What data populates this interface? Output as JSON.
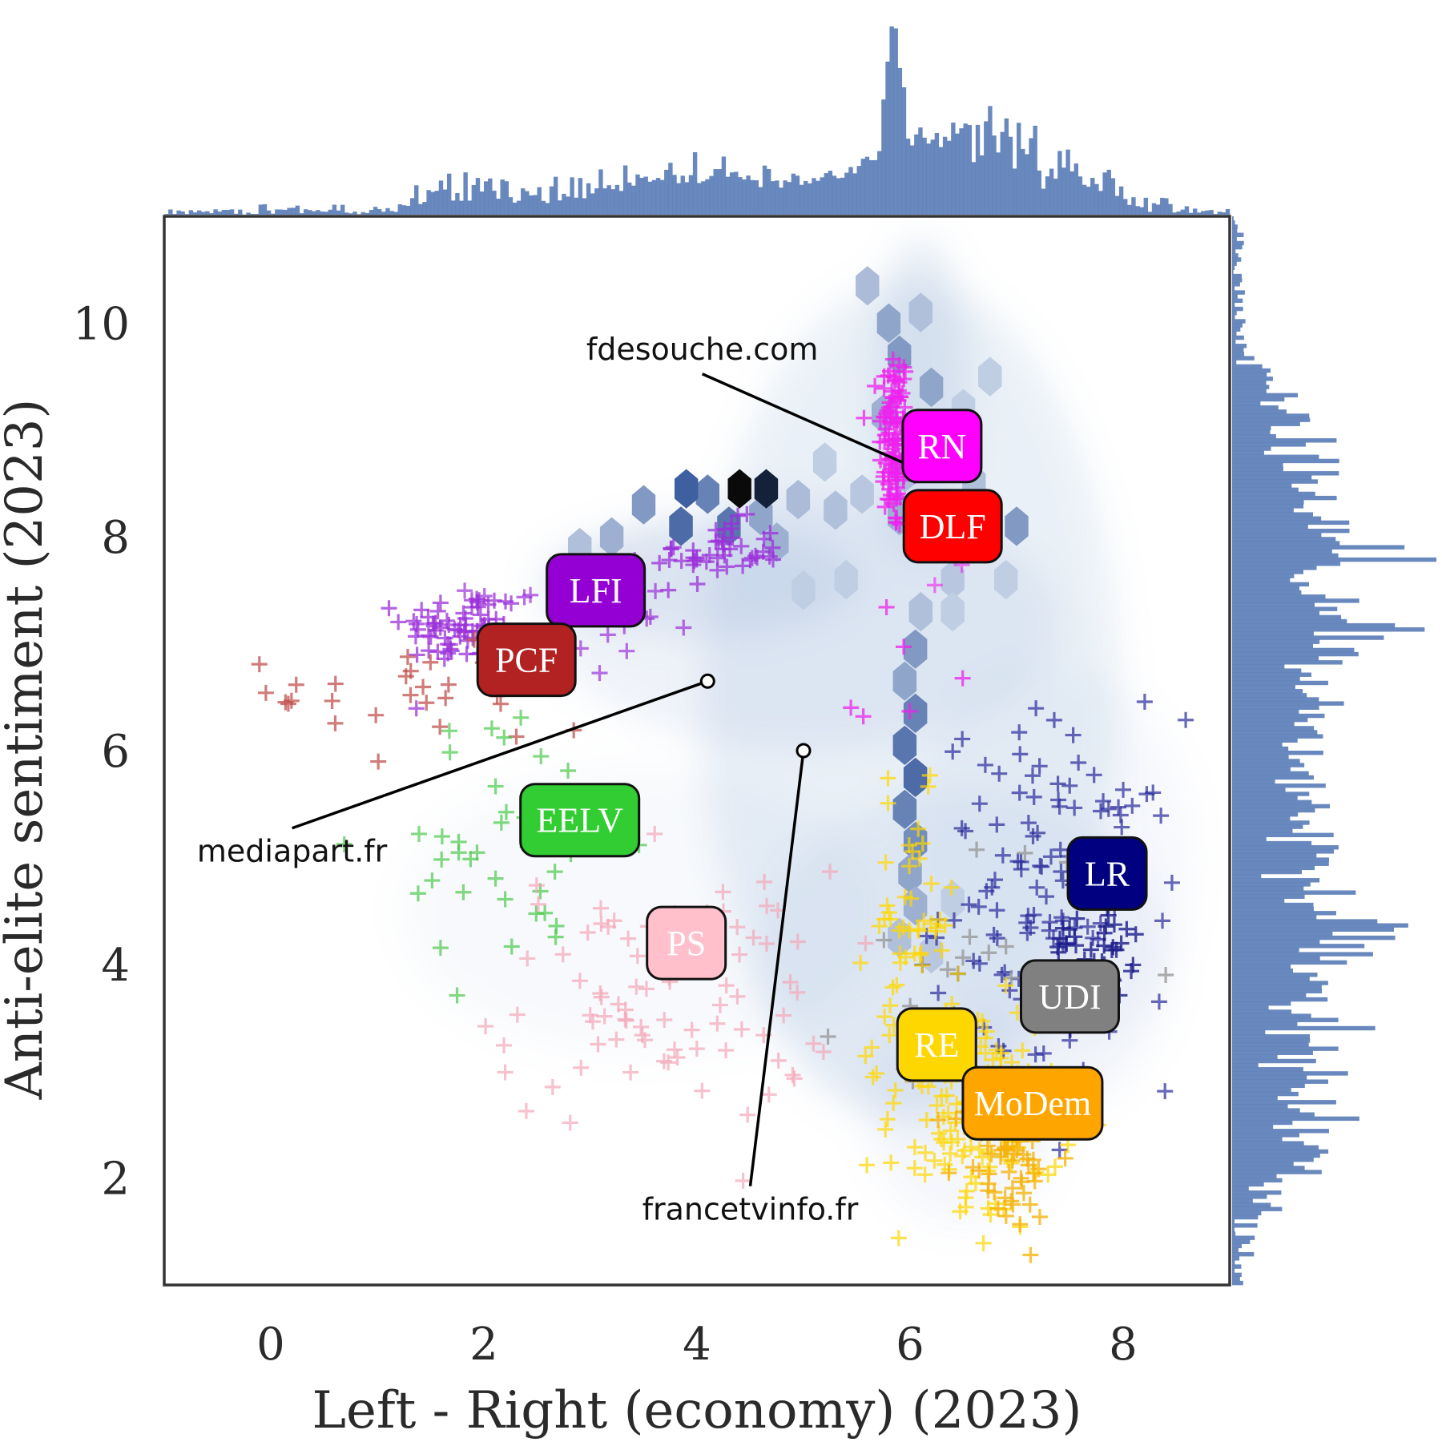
{
  "chart_data": {
    "type": "scatter",
    "title": "",
    "xlabel": "Left - Right (economy) (2023)",
    "ylabel": "Anti-elite sentiment (2023)",
    "xlim": [
      -1.0,
      9.0
    ],
    "ylim": [
      1.0,
      11.0
    ],
    "xticks": [
      0,
      2,
      4,
      6,
      8
    ],
    "yticks": [
      2,
      4,
      6,
      8,
      10
    ],
    "xtick_labels": [
      "0",
      "2",
      "4",
      "6",
      "8"
    ],
    "ytick_labels": [
      "2",
      "4",
      "6",
      "8",
      "10"
    ],
    "grid": false,
    "marginals": "histograms of all points on top (x) and right (y)",
    "background": "hexbin density of all accounts (blue)",
    "parties": [
      {
        "name": "RN",
        "x": 6.3,
        "y": 8.85,
        "color": "#ff00ff",
        "text_color": "#ffffff"
      },
      {
        "name": "DLF",
        "x": 6.4,
        "y": 8.1,
        "color": "#ff0000",
        "text_color": "#ffffff"
      },
      {
        "name": "LFI",
        "x": 3.05,
        "y": 7.5,
        "color": "#9400d3",
        "text_color": "#ffffff"
      },
      {
        "name": "PCF",
        "x": 2.4,
        "y": 6.85,
        "color": "#b22222",
        "text_color": "#ffffff"
      },
      {
        "name": "EELV",
        "x": 2.9,
        "y": 5.35,
        "color": "#32cd32",
        "text_color": "#ffffff"
      },
      {
        "name": "PS",
        "x": 3.9,
        "y": 4.2,
        "color": "#ffc0cb",
        "text_color": "#ffffff"
      },
      {
        "name": "LR",
        "x": 7.85,
        "y": 4.85,
        "color": "#000080",
        "text_color": "#ffffff"
      },
      {
        "name": "UDI",
        "x": 7.5,
        "y": 3.7,
        "color": "#808080",
        "text_color": "#ffffff"
      },
      {
        "name": "RE",
        "x": 6.25,
        "y": 3.25,
        "color": "#ffd700",
        "text_color": "#ffffff"
      },
      {
        "name": "MoDem",
        "x": 7.15,
        "y": 2.7,
        "color": "#ffa500",
        "text_color": "#ffffff"
      }
    ],
    "annotated_sites": [
      {
        "label": "fdesouche.com",
        "x": 6.15,
        "y": 8.6,
        "label_x": 4.05,
        "label_y": 9.75
      },
      {
        "label": "mediapart.fr",
        "x": 4.1,
        "y": 6.65,
        "label_x": 0.2,
        "label_y": 5.05
      },
      {
        "label": "francetvinfo.fr",
        "x": 5.0,
        "y": 6.0,
        "label_x": 4.5,
        "label_y": 1.7
      }
    ],
    "clusters": [
      {
        "party": "RN",
        "color": "#ee22ee",
        "alpha": 0.75,
        "n": 110,
        "cx": 5.85,
        "cy": 8.9,
        "sx": 0.07,
        "sy": 0.45
      },
      {
        "party": "RN",
        "color": "#ee22ee",
        "alpha": 0.75,
        "n": 6,
        "cx": 5.8,
        "cy": 6.6,
        "sx": 0.3,
        "sy": 0.5
      },
      {
        "party": "DLF",
        "color": "#ee22ee",
        "alpha": 0.6,
        "n": 8,
        "cx": 6.5,
        "cy": 7.9,
        "sx": 0.25,
        "sy": 0.2
      },
      {
        "party": "LFI",
        "color": "#9b30d9",
        "alpha": 0.75,
        "n": 70,
        "cx": 1.8,
        "cy": 7.15,
        "sx": 0.28,
        "sy": 0.18
      },
      {
        "party": "LFI",
        "color": "#9b30d9",
        "alpha": 0.75,
        "n": 45,
        "cx": 4.2,
        "cy": 7.85,
        "sx": 0.3,
        "sy": 0.15
      },
      {
        "party": "LFI",
        "color": "#9b30d9",
        "alpha": 0.7,
        "n": 20,
        "cx": 2.8,
        "cy": 7.2,
        "sx": 0.45,
        "sy": 0.25
      },
      {
        "party": "PCF",
        "color": "#c0504d",
        "alpha": 0.75,
        "n": 30,
        "cx": 1.5,
        "cy": 6.6,
        "sx": 0.75,
        "sy": 0.45
      },
      {
        "party": "EELV",
        "color": "#4cc94c",
        "alpha": 0.7,
        "n": 40,
        "cx": 2.2,
        "cy": 5.1,
        "sx": 0.6,
        "sy": 0.6
      },
      {
        "party": "PS",
        "color": "#f4a6b8",
        "alpha": 0.7,
        "n": 90,
        "cx": 3.7,
        "cy": 3.7,
        "sx": 0.8,
        "sy": 0.6
      },
      {
        "party": "LR",
        "color": "#2a2a9a",
        "alpha": 0.7,
        "n": 130,
        "cx": 7.4,
        "cy": 4.6,
        "sx": 0.55,
        "sy": 0.85
      },
      {
        "party": "LR",
        "color": "#1a1a8a",
        "alpha": 0.8,
        "n": 40,
        "cx": 7.7,
        "cy": 4.15,
        "sx": 0.2,
        "sy": 0.25
      },
      {
        "party": "UDI",
        "color": "#999999",
        "alpha": 0.8,
        "n": 20,
        "cx": 6.6,
        "cy": 4.0,
        "sx": 0.6,
        "sy": 0.7
      },
      {
        "party": "RE",
        "color": "#ffd700",
        "alpha": 0.7,
        "n": 140,
        "cx": 6.6,
        "cy": 2.6,
        "sx": 0.4,
        "sy": 0.55
      },
      {
        "party": "RE",
        "color": "#ffd700",
        "alpha": 0.7,
        "n": 50,
        "cx": 6.0,
        "cy": 4.3,
        "sx": 0.2,
        "sy": 0.6
      },
      {
        "party": "MoDem",
        "color": "#f5b000",
        "alpha": 0.75,
        "n": 60,
        "cx": 6.9,
        "cy": 2.2,
        "sx": 0.25,
        "sy": 0.35
      }
    ]
  }
}
